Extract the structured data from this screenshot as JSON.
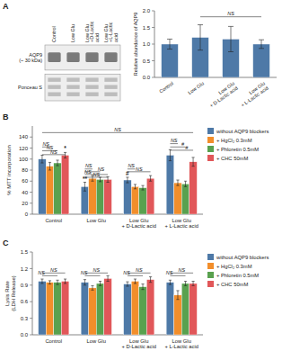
{
  "chart_data": [
    {
      "type": "blot",
      "title": "A",
      "categories": [
        "Control",
        "Low Glu",
        "Low Glu\n+D-Lactic\nacid",
        "Low Glu\n+L-Lactic\nacid"
      ],
      "annotations": [
        {
          "text": "AQP9\n(~ 30 kDa)"
        },
        {
          "text": "Ponceau S"
        }
      ]
    },
    {
      "type": "bar",
      "categories": [
        "Control",
        "Low Glu",
        "Low Glu\n+ D-Lactic acid",
        "Low Glu\n+ L-Lactic acid"
      ],
      "values": [
        1.0,
        1.2,
        1.15,
        1.0
      ],
      "errors": [
        0.15,
        0.38,
        0.38,
        0.13
      ],
      "ylabel": "Relative abundance of AQP9",
      "ylim": [
        0,
        2.0
      ],
      "yticks": [
        {
          "value": 0,
          "label": "0.0"
        },
        0.5,
        {
          "value": 1,
          "label": "1.0"
        },
        1.5,
        {
          "value": 2,
          "label": "2.0"
        }
      ],
      "annotations": [
        {
          "text": "NS",
          "y": 1.82,
          "from": {
            "category": "Low Glu"
          },
          "to": {
            "category": "Low Glu\n+ L-Lactic acid"
          }
        }
      ]
    },
    {
      "type": "bar",
      "title": "B",
      "categories": [
        "Control",
        "Low Glu",
        "Low Glu\n+ D-Lactic acid",
        "Low Glu\n+ L-Lactic acid"
      ],
      "series": [
        {
          "name": "without AQP9 blockers",
          "values": [
            100,
            50,
            62,
            107
          ],
          "errors": [
            7,
            8,
            5,
            10
          ]
        },
        {
          "name": "+ HgCl₂ 0.3mM",
          "values": [
            87,
            65,
            50,
            57
          ],
          "errors": [
            7,
            5,
            4,
            5
          ]
        },
        {
          "name": "+ Phloretin 0.5mM",
          "values": [
            93,
            63,
            48,
            55
          ],
          "errors": [
            5,
            4,
            4,
            5
          ]
        },
        {
          "name": "+ CHC 50mM",
          "values": [
            107,
            63,
            65,
            95
          ],
          "errors": [
            5,
            5,
            5,
            8
          ]
        }
      ],
      "ylabel": "% MTT incorporation",
      "ylim": [
        0,
        160
      ],
      "yticks": [
        0,
        20,
        40,
        60,
        80,
        100,
        120,
        140
      ],
      "legend": "right",
      "annotations": [
        {
          "text": "NS",
          "y": 122,
          "from": {
            "category": "Control",
            "series": "without AQP9 blockers"
          },
          "to": {
            "category": "Control",
            "series": "+ HgCl₂ 0.3mM"
          }
        },
        {
          "text": "NS",
          "y": 115,
          "from": {
            "category": "Control",
            "series": "without AQP9 blockers"
          },
          "to": {
            "category": "Control",
            "series": "+ Phloretin 0.5mM"
          }
        },
        {
          "text": "NS",
          "y": 108,
          "from": {
            "category": "Control",
            "series": "without AQP9 blockers"
          },
          "to": {
            "category": "Control",
            "series": "+ CHC 50mM"
          }
        },
        {
          "text": "NS",
          "y": 82,
          "from": {
            "category": "Low Glu",
            "series": "without AQP9 blockers"
          },
          "to": {
            "category": "Low Glu",
            "series": "+ HgCl₂ 0.3mM"
          }
        },
        {
          "text": "NS",
          "y": 77,
          "from": {
            "category": "Low Glu",
            "series": "without AQP9 blockers"
          },
          "to": {
            "category": "Low Glu",
            "series": "+ Phloretin 0.5mM"
          }
        },
        {
          "text": "NS",
          "y": 72,
          "from": {
            "category": "Low Glu",
            "series": "without AQP9 blockers"
          },
          "to": {
            "category": "Low Glu",
            "series": "+ CHC 50mM"
          }
        },
        {
          "text": "NS",
          "y": 67,
          "from": {
            "category": "Low Glu",
            "series": "without AQP9 blockers"
          },
          "to": {
            "category": "Low Glu",
            "series": "+ CHC 50mM"
          }
        },
        {
          "text": "NS",
          "y": 82,
          "from": {
            "category": "Low Glu\n+ D-Lactic acid",
            "series": "without AQP9 blockers"
          },
          "to": {
            "category": "Low Glu\n+ D-Lactic acid",
            "series": "+ HgCl₂ 0.3mM"
          }
        },
        {
          "text": "NS",
          "y": 77,
          "from": {
            "category": "Low Glu\n+ D-Lactic acid",
            "series": "without AQP9 blockers"
          },
          "to": {
            "category": "Low Glu\n+ D-Lactic acid",
            "series": "+ CHC 50mM"
          }
        },
        {
          "text": "NS",
          "y": 128,
          "from": {
            "category": "Low Glu\n+ L-Lactic acid",
            "series": "without AQP9 blockers"
          },
          "to": {
            "category": "Low Glu\n+ L-Lactic acid",
            "series": "+ HgCl₂ 0.3mM"
          }
        },
        {
          "text": "#",
          "y": 122,
          "from": {
            "category": "Low Glu\n+ L-Lactic acid",
            "series": "without AQP9 blockers"
          },
          "to": {
            "category": "Low Glu\n+ L-Lactic acid",
            "series": "+ Phloretin 0.5mM"
          }
        },
        {
          "text": "#",
          "y": 116,
          "from": {
            "category": "Low Glu\n+ L-Lactic acid",
            "series": "without AQP9 blockers"
          },
          "to": {
            "category": "Low Glu\n+ L-Lactic acid",
            "series": "+ CHC 50mM"
          }
        },
        {
          "text": "NS",
          "y": 148,
          "from": {
            "category": "Control",
            "series": "without AQP9 blockers"
          },
          "to": {
            "category": "Low Glu\n+ L-Lactic acid",
            "series": "+ CHC 50mM"
          }
        },
        {
          "text": "**",
          "y": 60,
          "at": {
            "category": "Low Glu",
            "series": "without AQP9 blockers"
          }
        },
        {
          "text": "#",
          "y": 70,
          "at": {
            "category": "Low Glu\n+ D-Lactic acid",
            "series": "without AQP9 blockers"
          }
        },
        {
          "text": "*",
          "y": 115,
          "at": {
            "category": "Control",
            "series": "+ CHC 50mM"
          }
        }
      ]
    },
    {
      "type": "bar",
      "title": "C",
      "categories": [
        "Control",
        "Low Glu",
        "Low Glu\n+ D-Lactic acid",
        "Low Glu\n+ L-Lactic acid"
      ],
      "series": [
        {
          "name": "without AQP9 blockers",
          "values": [
            0.97,
            0.95,
            0.92,
            0.95
          ],
          "errors": [
            0.04,
            0.05,
            0.04,
            0.04
          ]
        },
        {
          "name": "+ HgCl₂ 0.3mM",
          "values": [
            0.95,
            0.85,
            0.97,
            0.72
          ],
          "errors": [
            0.03,
            0.04,
            0.04,
            0.08
          ]
        },
        {
          "name": "+ Phloretin 0.5mM",
          "values": [
            0.95,
            0.93,
            0.87,
            0.93
          ],
          "errors": [
            0.04,
            0.04,
            0.05,
            0.04
          ]
        },
        {
          "name": "+ CHC 50mM",
          "values": [
            0.97,
            1.02,
            1.0,
            0.93
          ],
          "errors": [
            0.04,
            0.05,
            0.05,
            0.04
          ]
        }
      ],
      "ylabel": "Lysis Rate\n(LDH Release)",
      "ylim": [
        0.0,
        1.5
      ],
      "yticks": [
        {
          "value": 0,
          "label": "0.0"
        },
        0.3,
        0.6,
        0.9,
        1.2,
        1.5
      ],
      "legend": "right",
      "annotations": [
        {
          "text": "NS",
          "y": 1.12,
          "from": {
            "category": "Control",
            "series": "without AQP9 blockers"
          },
          "to": {
            "category": "Control",
            "series": "+ CHC 50mM"
          }
        },
        {
          "text": "NS",
          "y": 1.12,
          "from": {
            "category": "Low Glu",
            "series": "without AQP9 blockers"
          },
          "to": {
            "category": "Low Glu",
            "series": "+ CHC 50mM"
          }
        },
        {
          "text": "NS",
          "y": 1.12,
          "from": {
            "category": "Low Glu\n+ D-Lactic acid",
            "series": "without AQP9 blockers"
          },
          "to": {
            "category": "Low Glu\n+ D-Lactic acid",
            "series": "+ CHC 50mM"
          }
        },
        {
          "text": "NS",
          "y": 1.12,
          "from": {
            "category": "Low Glu\n+ L-Lactic acid",
            "series": "without AQP9 blockers"
          },
          "to": {
            "category": "Low Glu\n+ L-Lactic acid",
            "series": "+ CHC 50mM"
          }
        },
        {
          "text": "NS",
          "y": 1.07,
          "from": {
            "category": "Control",
            "series": "without AQP9 blockers"
          },
          "to": {
            "category": "Control",
            "series": "+ Phloretin 0.5mM"
          }
        },
        {
          "text": "NS",
          "y": 1.07,
          "from": {
            "category": "Low Glu",
            "series": "without AQP9 blockers"
          },
          "to": {
            "category": "Low Glu",
            "series": "+ Phloretin 0.5mM"
          }
        },
        {
          "text": "NS",
          "y": 1.07,
          "from": {
            "category": "Low Glu\n+ D-Lactic acid",
            "series": "without AQP9 blockers"
          },
          "to": {
            "category": "Low Glu\n+ D-Lactic acid",
            "series": "+ Phloretin 0.5mM"
          }
        },
        {
          "text": "NS",
          "y": 1.07,
          "from": {
            "category": "Low Glu\n+ L-Lactic acid",
            "series": "without AQP9 blockers"
          },
          "to": {
            "category": "Low Glu\n+ L-Lactic acid",
            "series": "+ Phloretin 0.5mM"
          }
        }
      ]
    }
  ]
}
